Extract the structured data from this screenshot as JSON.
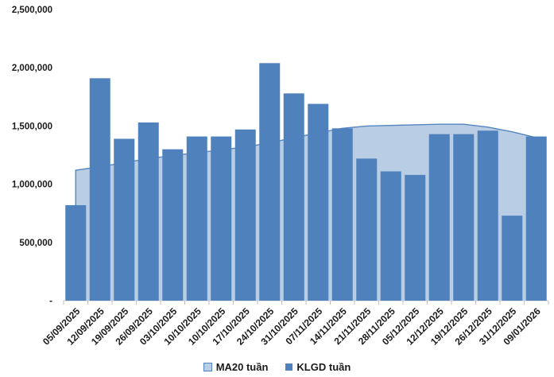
{
  "chart_data": {
    "type": "combo",
    "title": "",
    "xlabel": "",
    "ylabel": "",
    "grid": false,
    "legend_position": "bottom",
    "ylim": [
      0,
      2500000
    ],
    "y_ticks": [
      {
        "value": 0,
        "label": "-"
      },
      {
        "value": 500000,
        "label": "500,000"
      },
      {
        "value": 1000000,
        "label": "1,000,000"
      },
      {
        "value": 1500000,
        "label": "1,500,000"
      },
      {
        "value": 2000000,
        "label": "2,000,000"
      },
      {
        "value": 2500000,
        "label": "2,500,000"
      }
    ],
    "categories": [
      "05/09/2025",
      "12/09/2025",
      "19/09/2025",
      "26/09/2025",
      "03/10/2025",
      "10/10/2025",
      "10/10/2025",
      "17/10/2025",
      "24/10/2025",
      "31/10/2025",
      "07/11/2025",
      "14/11/2025",
      "21/11/2025",
      "28/11/2025",
      "05/12/2025",
      "12/12/2025",
      "19/12/2025",
      "26/12/2025",
      "31/12/2025",
      "09/01/2026"
    ],
    "series": [
      {
        "name": "MA20 tuần",
        "type": "area",
        "fill_color": "#B9CDE5",
        "line_color": "#5586C1",
        "values": [
          1120000,
          1150000,
          1185000,
          1220000,
          1245000,
          1270000,
          1295000,
          1320000,
          1355000,
          1400000,
          1440000,
          1480000,
          1500000,
          1505000,
          1510000,
          1515000,
          1515000,
          1490000,
          1450000,
          1400000
        ]
      },
      {
        "name": "KLGD tuần",
        "type": "bar",
        "fill_color": "#4F81BD",
        "values": [
          820000,
          1910000,
          1390000,
          1530000,
          1300000,
          1410000,
          1410000,
          1470000,
          2040000,
          1780000,
          1690000,
          1480000,
          1220000,
          1110000,
          1080000,
          1430000,
          1430000,
          1460000,
          730000,
          1410000
        ]
      }
    ]
  },
  "colors": {
    "axis_line": "#C9C9C9",
    "tick": "#BFBFBF",
    "text": "#1a1a1a",
    "background": "#ffffff"
  }
}
